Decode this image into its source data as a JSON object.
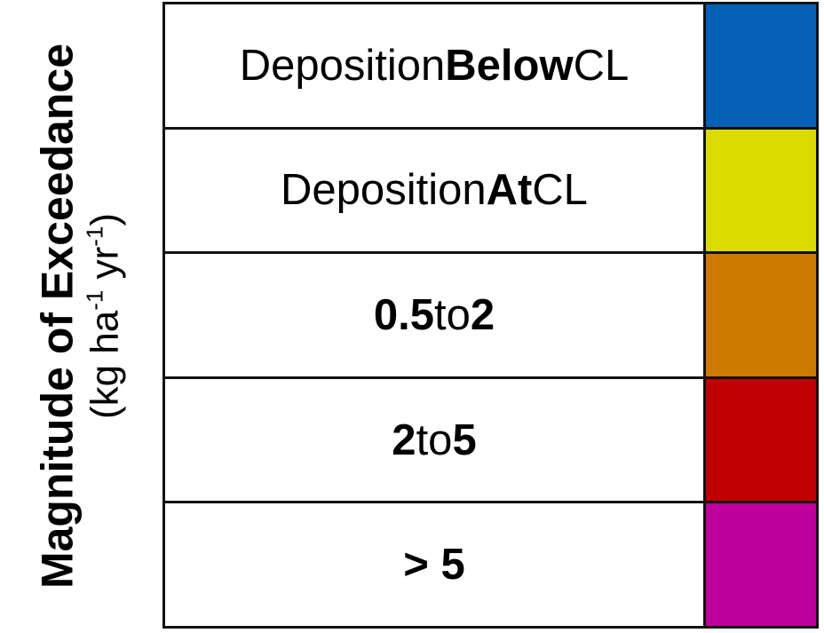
{
  "axis": {
    "title": "Magnitude of Exceedance",
    "units_prefix": "(kg ha",
    "units_exp1": "-1",
    "units_mid": " yr",
    "units_exp2": "-1",
    "units_suffix": ")"
  },
  "legend": {
    "rows": [
      {
        "parts": [
          {
            "text": "Deposition ",
            "bold": false
          },
          {
            "text": "Below",
            "bold": true
          },
          {
            "text": " CL",
            "bold": false
          }
        ],
        "color": "#0561b5"
      },
      {
        "parts": [
          {
            "text": "Deposition ",
            "bold": false
          },
          {
            "text": "At",
            "bold": true
          },
          {
            "text": " CL",
            "bold": false
          }
        ],
        "color": "#dcdb00"
      },
      {
        "parts": [
          {
            "text": "0.5",
            "bold": true
          },
          {
            "text": " to ",
            "bold": false
          },
          {
            "text": "2",
            "bold": true
          }
        ],
        "color": "#cc7a00"
      },
      {
        "parts": [
          {
            "text": "2",
            "bold": true
          },
          {
            "text": " to ",
            "bold": false
          },
          {
            "text": "5",
            "bold": true
          }
        ],
        "color": "#c00000"
      },
      {
        "parts": [
          {
            "text": "> 5",
            "bold": true
          }
        ],
        "color": "#c0009b"
      }
    ]
  }
}
